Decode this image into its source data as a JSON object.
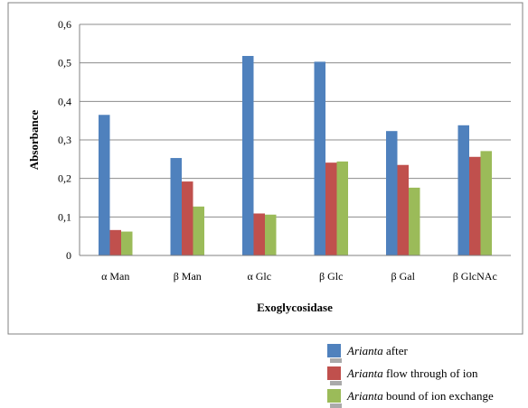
{
  "chart_data": {
    "type": "bar",
    "xlabel": "Exoglycosidase",
    "ylabel": "Absorbance",
    "ylim": [
      0,
      0.6
    ],
    "ytick_labels": [
      "0",
      "0,1",
      "0,2",
      "0,3",
      "0,4",
      "0,5",
      "0,6"
    ],
    "grid": true,
    "legend_position": "bottom-right",
    "categories": [
      "α Man",
      "β Man",
      "α Glc",
      "β Glc",
      "β Gal",
      "β GlcNAc"
    ],
    "series": [
      {
        "name_italic": "Arianta",
        "name_rest": " after",
        "color": "#4f81bd",
        "values": [
          0.365,
          0.253,
          0.518,
          0.503,
          0.323,
          0.338
        ]
      },
      {
        "name_italic": "Arianta",
        "name_rest": " flow through of ion",
        "color": "#c0504d",
        "values": [
          0.066,
          0.192,
          0.109,
          0.241,
          0.235,
          0.256
        ]
      },
      {
        "name_italic": "Arianta",
        "name_rest": " bound of ion exchange",
        "color": "#9bbb59",
        "values": [
          0.062,
          0.127,
          0.106,
          0.244,
          0.176,
          0.271
        ]
      }
    ]
  }
}
